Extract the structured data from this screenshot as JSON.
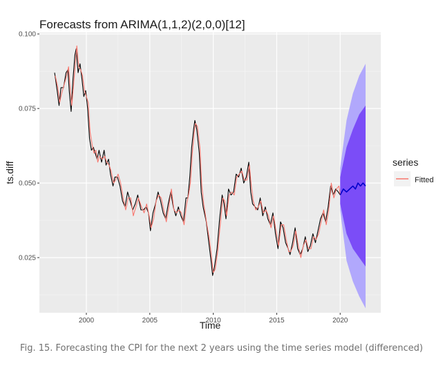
{
  "chart_data": {
    "type": "line",
    "title": "Forecasts from ARIMA(1,1,2)(2,0,0)[12]",
    "xlabel": "Time",
    "ylabel": "ts.diff",
    "xlim": [
      1996.3,
      2023.2
    ],
    "ylim": [
      0.0065,
      0.1005
    ],
    "x_ticks": [
      2000,
      2005,
      2010,
      2015,
      2020
    ],
    "x_tick_labels": [
      "2000",
      "2005",
      "2010",
      "2015",
      "2020"
    ],
    "y_ticks": [
      0.025,
      0.05,
      0.075,
      0.1
    ],
    "y_tick_labels": [
      "0.025",
      "0.050",
      "0.075",
      "0.100"
    ],
    "grid": true,
    "background": "#ebebeb",
    "legend": {
      "title": "series",
      "position": "right",
      "entries": [
        {
          "label": "Fitted",
          "color": "#f8766d"
        }
      ]
    },
    "series": [
      {
        "role": "observed",
        "color": "#000000",
        "points": [
          [
            1997.5,
            0.087
          ],
          [
            1997.7,
            0.081
          ],
          [
            1997.85,
            0.076
          ],
          [
            1998.0,
            0.082
          ],
          [
            1998.2,
            0.082
          ],
          [
            1998.4,
            0.087
          ],
          [
            1998.55,
            0.088
          ],
          [
            1998.65,
            0.081
          ],
          [
            1998.8,
            0.074
          ],
          [
            1998.95,
            0.085
          ],
          [
            1999.1,
            0.093
          ],
          [
            1999.2,
            0.095
          ],
          [
            1999.35,
            0.087
          ],
          [
            1999.5,
            0.09
          ],
          [
            1999.65,
            0.085
          ],
          [
            1999.8,
            0.079
          ],
          [
            1999.95,
            0.081
          ],
          [
            2000.1,
            0.075
          ],
          [
            2000.25,
            0.065
          ],
          [
            2000.4,
            0.061
          ],
          [
            2000.55,
            0.062
          ],
          [
            2000.7,
            0.06
          ],
          [
            2000.85,
            0.058
          ],
          [
            2001.0,
            0.061
          ],
          [
            2001.2,
            0.057
          ],
          [
            2001.4,
            0.061
          ],
          [
            2001.55,
            0.056
          ],
          [
            2001.75,
            0.058
          ],
          [
            2001.9,
            0.053
          ],
          [
            2002.1,
            0.049
          ],
          [
            2002.25,
            0.052
          ],
          [
            2002.45,
            0.052
          ],
          [
            2002.65,
            0.049
          ],
          [
            2002.85,
            0.044
          ],
          [
            2003.05,
            0.042
          ],
          [
            2003.25,
            0.047
          ],
          [
            2003.45,
            0.044
          ],
          [
            2003.65,
            0.041
          ],
          [
            2003.85,
            0.043
          ],
          [
            2004.05,
            0.046
          ],
          [
            2004.3,
            0.041
          ],
          [
            2004.5,
            0.041
          ],
          [
            2004.7,
            0.042
          ],
          [
            2004.9,
            0.04
          ],
          [
            2005.05,
            0.034
          ],
          [
            2005.25,
            0.04
          ],
          [
            2005.45,
            0.043
          ],
          [
            2005.65,
            0.047
          ],
          [
            2005.85,
            0.044
          ],
          [
            2006.05,
            0.04
          ],
          [
            2006.25,
            0.038
          ],
          [
            2006.45,
            0.043
          ],
          [
            2006.65,
            0.047
          ],
          [
            2006.85,
            0.042
          ],
          [
            2007.05,
            0.039
          ],
          [
            2007.25,
            0.042
          ],
          [
            2007.45,
            0.039
          ],
          [
            2007.65,
            0.037
          ],
          [
            2007.85,
            0.045
          ],
          [
            2008.0,
            0.045
          ],
          [
            2008.15,
            0.052
          ],
          [
            2008.3,
            0.062
          ],
          [
            2008.45,
            0.068
          ],
          [
            2008.55,
            0.071
          ],
          [
            2008.7,
            0.068
          ],
          [
            2008.9,
            0.06
          ],
          [
            2009.05,
            0.047
          ],
          [
            2009.2,
            0.042
          ],
          [
            2009.45,
            0.037
          ],
          [
            2009.65,
            0.03
          ],
          [
            2009.85,
            0.023
          ],
          [
            2009.95,
            0.019
          ],
          [
            2010.1,
            0.022
          ],
          [
            2010.3,
            0.028
          ],
          [
            2010.5,
            0.038
          ],
          [
            2010.7,
            0.046
          ],
          [
            2010.85,
            0.043
          ],
          [
            2011.0,
            0.038
          ],
          [
            2011.2,
            0.048
          ],
          [
            2011.4,
            0.046
          ],
          [
            2011.6,
            0.047
          ],
          [
            2011.8,
            0.053
          ],
          [
            2012.0,
            0.052
          ],
          [
            2012.2,
            0.055
          ],
          [
            2012.4,
            0.05
          ],
          [
            2012.6,
            0.052
          ],
          [
            2012.8,
            0.057
          ],
          [
            2012.95,
            0.047
          ],
          [
            2013.1,
            0.043
          ],
          [
            2013.3,
            0.042
          ],
          [
            2013.5,
            0.041
          ],
          [
            2013.7,
            0.045
          ],
          [
            2013.9,
            0.039
          ],
          [
            2014.1,
            0.042
          ],
          [
            2014.3,
            0.038
          ],
          [
            2014.5,
            0.036
          ],
          [
            2014.7,
            0.04
          ],
          [
            2014.9,
            0.033
          ],
          [
            2015.1,
            0.028
          ],
          [
            2015.3,
            0.037
          ],
          [
            2015.5,
            0.035
          ],
          [
            2015.7,
            0.03
          ],
          [
            2015.9,
            0.028
          ],
          [
            2016.05,
            0.026
          ],
          [
            2016.25,
            0.03
          ],
          [
            2016.45,
            0.035
          ],
          [
            2016.65,
            0.028
          ],
          [
            2016.85,
            0.026
          ],
          [
            2017.05,
            0.028
          ],
          [
            2017.25,
            0.032
          ],
          [
            2017.45,
            0.027
          ],
          [
            2017.65,
            0.029
          ],
          [
            2017.85,
            0.033
          ],
          [
            2018.05,
            0.03
          ],
          [
            2018.25,
            0.034
          ],
          [
            2018.45,
            0.038
          ],
          [
            2018.65,
            0.04
          ],
          [
            2018.85,
            0.037
          ],
          [
            2019.05,
            0.042
          ],
          [
            2019.25,
            0.049
          ],
          [
            2019.45,
            0.046
          ],
          [
            2019.65,
            0.048
          ],
          [
            2019.85,
            0.047
          ],
          [
            2020.0,
            0.046
          ]
        ]
      },
      {
        "name": "Fitted",
        "color": "#f8766d",
        "points": [
          [
            1997.55,
            0.086
          ],
          [
            1997.75,
            0.082
          ],
          [
            1997.9,
            0.077
          ],
          [
            1998.05,
            0.08
          ],
          [
            1998.25,
            0.083
          ],
          [
            1998.45,
            0.086
          ],
          [
            1998.6,
            0.089
          ],
          [
            1998.7,
            0.083
          ],
          [
            1998.85,
            0.076
          ],
          [
            1999.0,
            0.083
          ],
          [
            1999.15,
            0.091
          ],
          [
            1999.25,
            0.096
          ],
          [
            1999.4,
            0.089
          ],
          [
            1999.55,
            0.088
          ],
          [
            1999.7,
            0.086
          ],
          [
            1999.85,
            0.081
          ],
          [
            2000.0,
            0.079
          ],
          [
            2000.15,
            0.077
          ],
          [
            2000.3,
            0.067
          ],
          [
            2000.45,
            0.063
          ],
          [
            2000.6,
            0.06
          ],
          [
            2000.75,
            0.061
          ],
          [
            2000.9,
            0.057
          ],
          [
            2001.05,
            0.059
          ],
          [
            2001.25,
            0.058
          ],
          [
            2001.45,
            0.059
          ],
          [
            2001.6,
            0.057
          ],
          [
            2001.8,
            0.056
          ],
          [
            2001.95,
            0.054
          ],
          [
            2002.15,
            0.05
          ],
          [
            2002.3,
            0.051
          ],
          [
            2002.5,
            0.053
          ],
          [
            2002.7,
            0.05
          ],
          [
            2002.9,
            0.045
          ],
          [
            2003.1,
            0.041
          ],
          [
            2003.3,
            0.045
          ],
          [
            2003.5,
            0.045
          ],
          [
            2003.7,
            0.039
          ],
          [
            2003.9,
            0.042
          ],
          [
            2004.1,
            0.045
          ],
          [
            2004.35,
            0.042
          ],
          [
            2004.55,
            0.04
          ],
          [
            2004.75,
            0.043
          ],
          [
            2004.95,
            0.039
          ],
          [
            2005.1,
            0.035
          ],
          [
            2005.3,
            0.038
          ],
          [
            2005.5,
            0.044
          ],
          [
            2005.7,
            0.046
          ],
          [
            2005.9,
            0.045
          ],
          [
            2006.1,
            0.041
          ],
          [
            2006.3,
            0.037
          ],
          [
            2006.5,
            0.042
          ],
          [
            2006.7,
            0.048
          ],
          [
            2006.9,
            0.041
          ],
          [
            2007.1,
            0.04
          ],
          [
            2007.3,
            0.041
          ],
          [
            2007.5,
            0.04
          ],
          [
            2007.7,
            0.036
          ],
          [
            2007.9,
            0.043
          ],
          [
            2008.05,
            0.046
          ],
          [
            2008.2,
            0.05
          ],
          [
            2008.35,
            0.06
          ],
          [
            2008.5,
            0.067
          ],
          [
            2008.6,
            0.07
          ],
          [
            2008.75,
            0.069
          ],
          [
            2008.95,
            0.062
          ],
          [
            2009.1,
            0.049
          ],
          [
            2009.25,
            0.043
          ],
          [
            2009.5,
            0.036
          ],
          [
            2009.7,
            0.031
          ],
          [
            2009.9,
            0.024
          ],
          [
            2010.0,
            0.02
          ],
          [
            2010.15,
            0.021
          ],
          [
            2010.35,
            0.027
          ],
          [
            2010.55,
            0.036
          ],
          [
            2010.75,
            0.045
          ],
          [
            2010.9,
            0.044
          ],
          [
            2011.05,
            0.039
          ],
          [
            2011.25,
            0.046
          ],
          [
            2011.45,
            0.047
          ],
          [
            2011.65,
            0.046
          ],
          [
            2011.85,
            0.052
          ],
          [
            2012.05,
            0.053
          ],
          [
            2012.25,
            0.054
          ],
          [
            2012.45,
            0.051
          ],
          [
            2012.65,
            0.051
          ],
          [
            2012.85,
            0.056
          ],
          [
            2013.0,
            0.049
          ],
          [
            2013.15,
            0.044
          ],
          [
            2013.35,
            0.041
          ],
          [
            2013.55,
            0.042
          ],
          [
            2013.75,
            0.044
          ],
          [
            2013.95,
            0.04
          ],
          [
            2014.15,
            0.041
          ],
          [
            2014.35,
            0.039
          ],
          [
            2014.55,
            0.035
          ],
          [
            2014.75,
            0.039
          ],
          [
            2014.95,
            0.034
          ],
          [
            2015.15,
            0.029
          ],
          [
            2015.35,
            0.036
          ],
          [
            2015.55,
            0.036
          ],
          [
            2015.75,
            0.031
          ],
          [
            2015.95,
            0.027
          ],
          [
            2016.1,
            0.027
          ],
          [
            2016.3,
            0.029
          ],
          [
            2016.5,
            0.034
          ],
          [
            2016.7,
            0.029
          ],
          [
            2016.9,
            0.025
          ],
          [
            2017.1,
            0.029
          ],
          [
            2017.3,
            0.031
          ],
          [
            2017.5,
            0.028
          ],
          [
            2017.7,
            0.028
          ],
          [
            2017.9,
            0.032
          ],
          [
            2018.1,
            0.031
          ],
          [
            2018.3,
            0.033
          ],
          [
            2018.5,
            0.037
          ],
          [
            2018.7,
            0.041
          ],
          [
            2018.9,
            0.036
          ],
          [
            2019.1,
            0.041
          ],
          [
            2019.3,
            0.05
          ],
          [
            2019.5,
            0.045
          ],
          [
            2019.7,
            0.048
          ],
          [
            2019.9,
            0.049
          ],
          [
            2020.0,
            0.046
          ]
        ]
      },
      {
        "role": "forecast",
        "color": "#0000cc",
        "points": [
          [
            2020.0,
            0.046
          ],
          [
            2020.25,
            0.048
          ],
          [
            2020.5,
            0.047
          ],
          [
            2020.75,
            0.048
          ],
          [
            2021.0,
            0.049
          ],
          [
            2021.2,
            0.048
          ],
          [
            2021.4,
            0.05
          ],
          [
            2021.6,
            0.049
          ],
          [
            2021.8,
            0.05
          ],
          [
            2022.0,
            0.049
          ]
        ]
      }
    ],
    "intervals": [
      {
        "level": "95",
        "color": "#b1a8fc",
        "x": [
          2020.0,
          2020.5,
          2021.0,
          2021.5,
          2022.0
        ],
        "lower": [
          0.041,
          0.024,
          0.017,
          0.012,
          0.008
        ],
        "upper": [
          0.055,
          0.071,
          0.08,
          0.086,
          0.09
        ]
      },
      {
        "level": "80",
        "color": "#7b4df7",
        "x": [
          2020.0,
          2020.5,
          2021.0,
          2021.5,
          2022.0
        ],
        "lower": [
          0.043,
          0.033,
          0.028,
          0.025,
          0.022
        ],
        "upper": [
          0.052,
          0.062,
          0.068,
          0.073,
          0.076
        ]
      }
    ]
  },
  "caption": "Fig. 15. Forecasting the CPI for the next 2 years using the time series model (differenced)"
}
